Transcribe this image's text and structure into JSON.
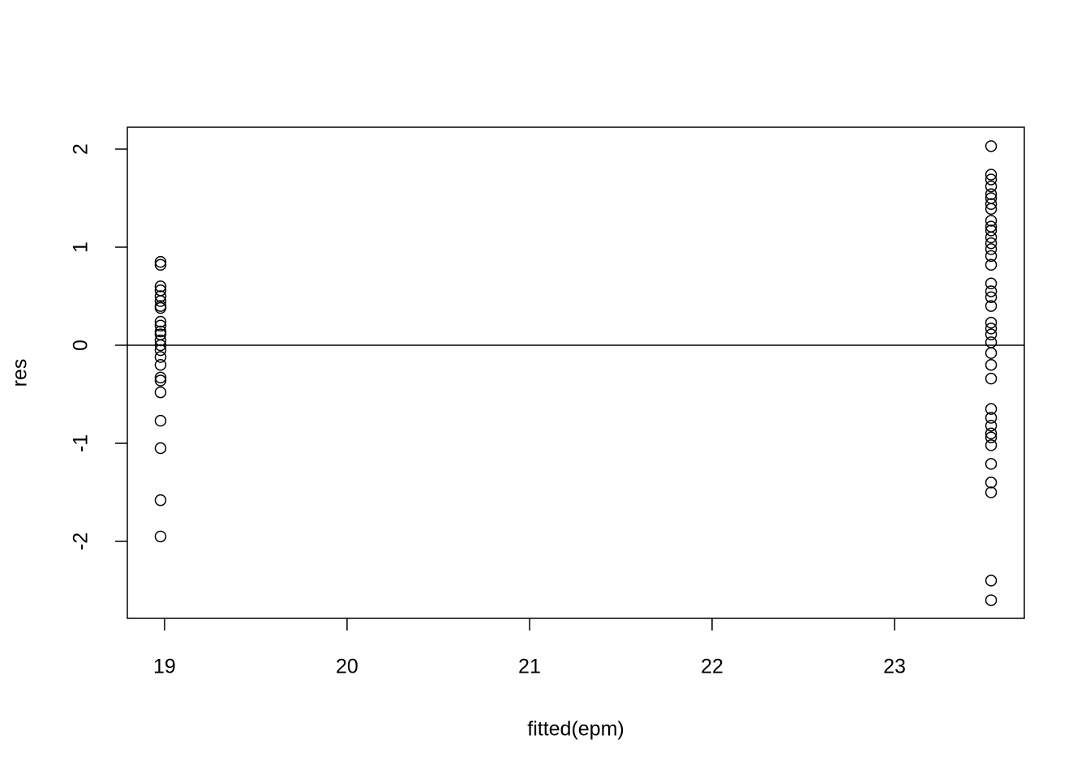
{
  "chart_data": {
    "type": "scatter",
    "x_label": "fitted(epm)",
    "y_label": "res",
    "x": [
      18.978,
      18.978,
      18.978,
      18.978,
      18.978,
      18.978,
      18.978,
      18.978,
      18.978,
      18.978,
      18.978,
      18.978,
      18.978,
      18.978,
      18.978,
      18.978,
      18.978,
      18.978,
      18.978,
      18.978,
      18.978,
      18.978,
      18.978,
      18.978,
      23.529,
      23.529,
      23.529,
      23.529,
      23.529,
      23.529,
      23.529,
      23.529,
      23.529,
      23.529,
      23.529,
      23.529,
      23.529,
      23.529,
      23.529,
      23.529,
      23.529,
      23.529,
      23.529,
      23.529,
      23.529,
      23.529,
      23.529,
      23.529,
      23.529,
      23.529,
      23.529,
      23.529,
      23.529,
      23.529,
      23.529,
      23.529,
      23.529,
      23.529,
      23.529,
      23.529,
      23.529,
      23.529
    ],
    "values": [
      0.85,
      0.82,
      0.6,
      0.56,
      0.5,
      0.45,
      0.4,
      0.38,
      0.24,
      0.2,
      0.14,
      0.11,
      0.05,
      0,
      -0.05,
      -0.12,
      -0.2,
      -0.33,
      -0.36,
      -0.48,
      -0.77,
      -1.05,
      -1.58,
      -1.95,
      2.03,
      1.74,
      1.69,
      1.62,
      1.54,
      1.5,
      1.44,
      1.39,
      1.27,
      1.21,
      1.17,
      1.1,
      1.04,
      0.98,
      0.91,
      0.82,
      0.63,
      0.55,
      0.49,
      0.4,
      0.23,
      0.17,
      0.11,
      0.03,
      -0.08,
      -0.2,
      -0.34,
      -0.65,
      -0.74,
      -0.82,
      -0.9,
      -0.94,
      -1.02,
      -1.21,
      -1.4,
      -1.5,
      -2.4,
      -2.6
    ],
    "color": "#000000",
    "xlim": [
      18.796,
      23.711
    ],
    "xticks": [
      19,
      20,
      21,
      22,
      23
    ],
    "ylim": [
      -2.785,
      2.223
    ],
    "yticks": [
      -2,
      -1,
      0,
      1,
      2
    ],
    "hline": 0
  }
}
